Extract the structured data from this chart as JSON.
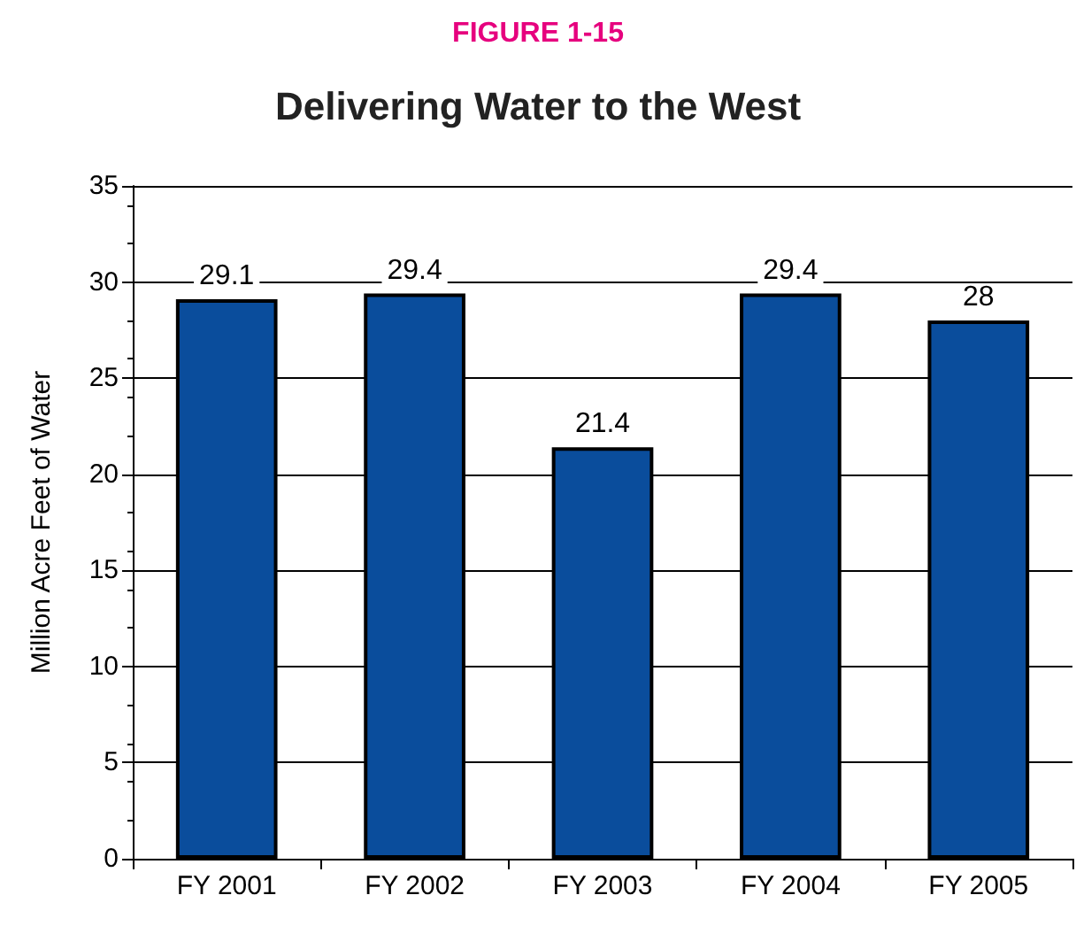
{
  "chart_data": {
    "type": "bar",
    "title": "Delivering Water to the West",
    "annotations": [
      "FIGURE 1-15"
    ],
    "ylabel": "Million Acre Feet of Water",
    "categories": [
      "FY 2001",
      "FY 2002",
      "FY 2003",
      "FY 2004",
      "FY 2005"
    ],
    "values": [
      29.1,
      29.4,
      21.4,
      29.4,
      28
    ],
    "color": "#0a4d9c",
    "ylim": [
      0,
      35
    ],
    "yticks": [
      0,
      5,
      10,
      15,
      20,
      25,
      30,
      35
    ],
    "grid": "y",
    "data_labels": true
  }
}
